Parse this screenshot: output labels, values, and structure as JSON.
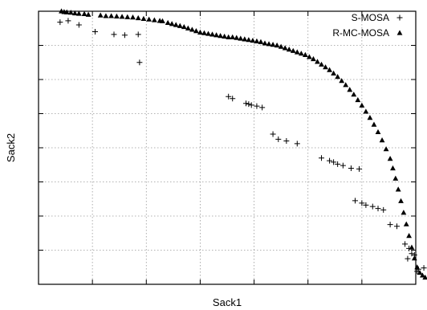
{
  "chart_data": {
    "type": "scatter",
    "xlabel": "Sack1",
    "ylabel": "Sack2",
    "xlim": [
      0,
      14
    ],
    "ylim": [
      0,
      8
    ],
    "x_ticks": [
      0,
      2,
      4,
      6,
      8,
      10,
      12,
      14
    ],
    "y_ticks": [
      0,
      1,
      2,
      3,
      4,
      5,
      6,
      7,
      8
    ],
    "tick_labels_shown": false,
    "grid": true,
    "legend": "top-right",
    "series": [
      {
        "name": "S-MOSA",
        "marker": "plus",
        "points": [
          [
            0.8,
            7.68
          ],
          [
            1.1,
            7.72
          ],
          [
            1.5,
            7.6
          ],
          [
            2.1,
            7.4
          ],
          [
            2.8,
            7.32
          ],
          [
            3.2,
            7.3
          ],
          [
            3.7,
            7.32
          ],
          [
            3.75,
            6.5
          ],
          [
            7.05,
            5.5
          ],
          [
            7.2,
            5.44
          ],
          [
            7.7,
            5.3
          ],
          [
            7.8,
            5.28
          ],
          [
            7.9,
            5.25
          ],
          [
            8.1,
            5.22
          ],
          [
            8.3,
            5.18
          ],
          [
            8.7,
            4.4
          ],
          [
            8.9,
            4.25
          ],
          [
            9.2,
            4.2
          ],
          [
            9.6,
            4.12
          ],
          [
            10.5,
            3.7
          ],
          [
            10.8,
            3.62
          ],
          [
            10.95,
            3.58
          ],
          [
            11.1,
            3.52
          ],
          [
            11.3,
            3.48
          ],
          [
            11.6,
            3.4
          ],
          [
            11.9,
            3.38
          ],
          [
            11.75,
            2.45
          ],
          [
            12.0,
            2.38
          ],
          [
            12.15,
            2.32
          ],
          [
            12.4,
            2.28
          ],
          [
            12.6,
            2.22
          ],
          [
            12.8,
            2.18
          ],
          [
            13.05,
            1.75
          ],
          [
            13.3,
            1.7
          ],
          [
            13.6,
            1.18
          ],
          [
            13.75,
            1.05
          ],
          [
            13.85,
            0.9
          ],
          [
            13.95,
            0.86
          ],
          [
            13.7,
            0.75
          ],
          [
            14.3,
            0.48
          ],
          [
            14.1,
            0.44
          ],
          [
            14.05,
            0.38
          ]
        ]
      },
      {
        "name": "R-MC-MOSA",
        "marker": "triangle",
        "points": [
          [
            0.85,
            8.0
          ],
          [
            0.95,
            7.98
          ],
          [
            1.05,
            7.97
          ],
          [
            1.2,
            7.96
          ],
          [
            1.35,
            7.94
          ],
          [
            1.5,
            7.93
          ],
          [
            1.7,
            7.92
          ],
          [
            1.85,
            7.9
          ],
          [
            2.3,
            7.88
          ],
          [
            2.5,
            7.86
          ],
          [
            2.7,
            7.86
          ],
          [
            2.9,
            7.85
          ],
          [
            3.1,
            7.84
          ],
          [
            3.3,
            7.83
          ],
          [
            3.5,
            7.82
          ],
          [
            3.7,
            7.8
          ],
          [
            3.9,
            7.78
          ],
          [
            4.1,
            7.76
          ],
          [
            4.3,
            7.74
          ],
          [
            4.5,
            7.72
          ],
          [
            4.6,
            7.71
          ],
          [
            4.8,
            7.66
          ],
          [
            4.95,
            7.63
          ],
          [
            5.1,
            7.6
          ],
          [
            5.25,
            7.57
          ],
          [
            5.4,
            7.54
          ],
          [
            5.55,
            7.5
          ],
          [
            5.7,
            7.46
          ],
          [
            5.85,
            7.42
          ],
          [
            6.0,
            7.38
          ],
          [
            6.15,
            7.36
          ],
          [
            6.3,
            7.34
          ],
          [
            6.45,
            7.32
          ],
          [
            6.6,
            7.3
          ],
          [
            6.75,
            7.28
          ],
          [
            6.9,
            7.26
          ],
          [
            7.05,
            7.24
          ],
          [
            7.2,
            7.24
          ],
          [
            7.35,
            7.22
          ],
          [
            7.5,
            7.2
          ],
          [
            7.65,
            7.18
          ],
          [
            7.8,
            7.16
          ],
          [
            7.95,
            7.14
          ],
          [
            8.1,
            7.12
          ],
          [
            8.25,
            7.1
          ],
          [
            8.4,
            7.06
          ],
          [
            8.55,
            7.04
          ],
          [
            8.7,
            7.02
          ],
          [
            8.85,
            7.0
          ],
          [
            9.0,
            6.96
          ],
          [
            9.15,
            6.92
          ],
          [
            9.3,
            6.88
          ],
          [
            9.45,
            6.84
          ],
          [
            9.6,
            6.8
          ],
          [
            9.75,
            6.76
          ],
          [
            9.9,
            6.72
          ],
          [
            10.05,
            6.66
          ],
          [
            10.2,
            6.6
          ],
          [
            10.35,
            6.52
          ],
          [
            10.5,
            6.44
          ],
          [
            10.65,
            6.36
          ],
          [
            10.8,
            6.28
          ],
          [
            10.95,
            6.18
          ],
          [
            11.1,
            6.08
          ],
          [
            11.25,
            5.96
          ],
          [
            11.4,
            5.84
          ],
          [
            11.55,
            5.7
          ],
          [
            11.7,
            5.56
          ],
          [
            11.85,
            5.4
          ],
          [
            12.0,
            5.24
          ],
          [
            12.15,
            5.06
          ],
          [
            12.3,
            4.88
          ],
          [
            12.45,
            4.68
          ],
          [
            12.6,
            4.46
          ],
          [
            12.75,
            4.22
          ],
          [
            12.9,
            3.96
          ],
          [
            13.05,
            3.68
          ],
          [
            13.15,
            3.4
          ],
          [
            13.25,
            3.1
          ],
          [
            13.35,
            2.78
          ],
          [
            13.45,
            2.44
          ],
          [
            13.55,
            2.1
          ],
          [
            13.65,
            1.76
          ],
          [
            13.75,
            1.42
          ],
          [
            13.85,
            1.08
          ],
          [
            13.95,
            0.76
          ],
          [
            14.05,
            0.5
          ],
          [
            14.15,
            0.34
          ],
          [
            14.25,
            0.26
          ],
          [
            14.35,
            0.2
          ]
        ]
      }
    ]
  }
}
